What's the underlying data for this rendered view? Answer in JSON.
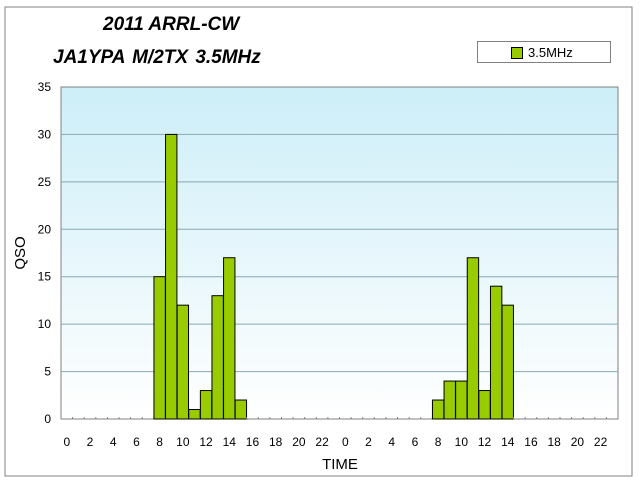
{
  "chart_data": {
    "type": "bar",
    "title": "2011 ARRL-CW",
    "subtitle": "JA1YPA M/2TX   3.5MHz",
    "xlabel": "TIME",
    "ylabel": "QSO",
    "ylim": [
      0,
      35
    ],
    "yticks": [
      0,
      5,
      10,
      15,
      20,
      25,
      30,
      35
    ],
    "grid": true,
    "legend_position": "top-right",
    "categories": [
      "0",
      "1",
      "2",
      "3",
      "4",
      "5",
      "6",
      "7",
      "8",
      "9",
      "10",
      "11",
      "12",
      "13",
      "14",
      "15",
      "16",
      "17",
      "18",
      "19",
      "20",
      "21",
      "22",
      "23",
      "0",
      "1",
      "2",
      "3",
      "4",
      "5",
      "6",
      "7",
      "8",
      "9",
      "10",
      "11",
      "12",
      "13",
      "14",
      "15",
      "16",
      "17",
      "18",
      "19",
      "20",
      "21",
      "22",
      "23"
    ],
    "category_labels": [
      "0",
      "",
      "2",
      "",
      "4",
      "",
      "6",
      "",
      "8",
      "",
      "10",
      "",
      "12",
      "",
      "14",
      "",
      "16",
      "",
      "18",
      "",
      "20",
      "",
      "22",
      "",
      "0",
      "",
      "2",
      "",
      "4",
      "",
      "6",
      "",
      "8",
      "",
      "10",
      "",
      "12",
      "",
      "14",
      "",
      "16",
      "",
      "18",
      "",
      "20",
      "",
      "22",
      ""
    ],
    "series": [
      {
        "name": "3.5MHz",
        "color": "#99cc00",
        "values": [
          0,
          0,
          0,
          0,
          0,
          0,
          0,
          0,
          15,
          30,
          12,
          1,
          3,
          13,
          17,
          2,
          0,
          0,
          0,
          0,
          0,
          0,
          0,
          0,
          0,
          0,
          0,
          0,
          0,
          0,
          0,
          0,
          2,
          4,
          4,
          17,
          3,
          14,
          12,
          0,
          0,
          0,
          0,
          0,
          0,
          0,
          0,
          0
        ]
      }
    ]
  }
}
